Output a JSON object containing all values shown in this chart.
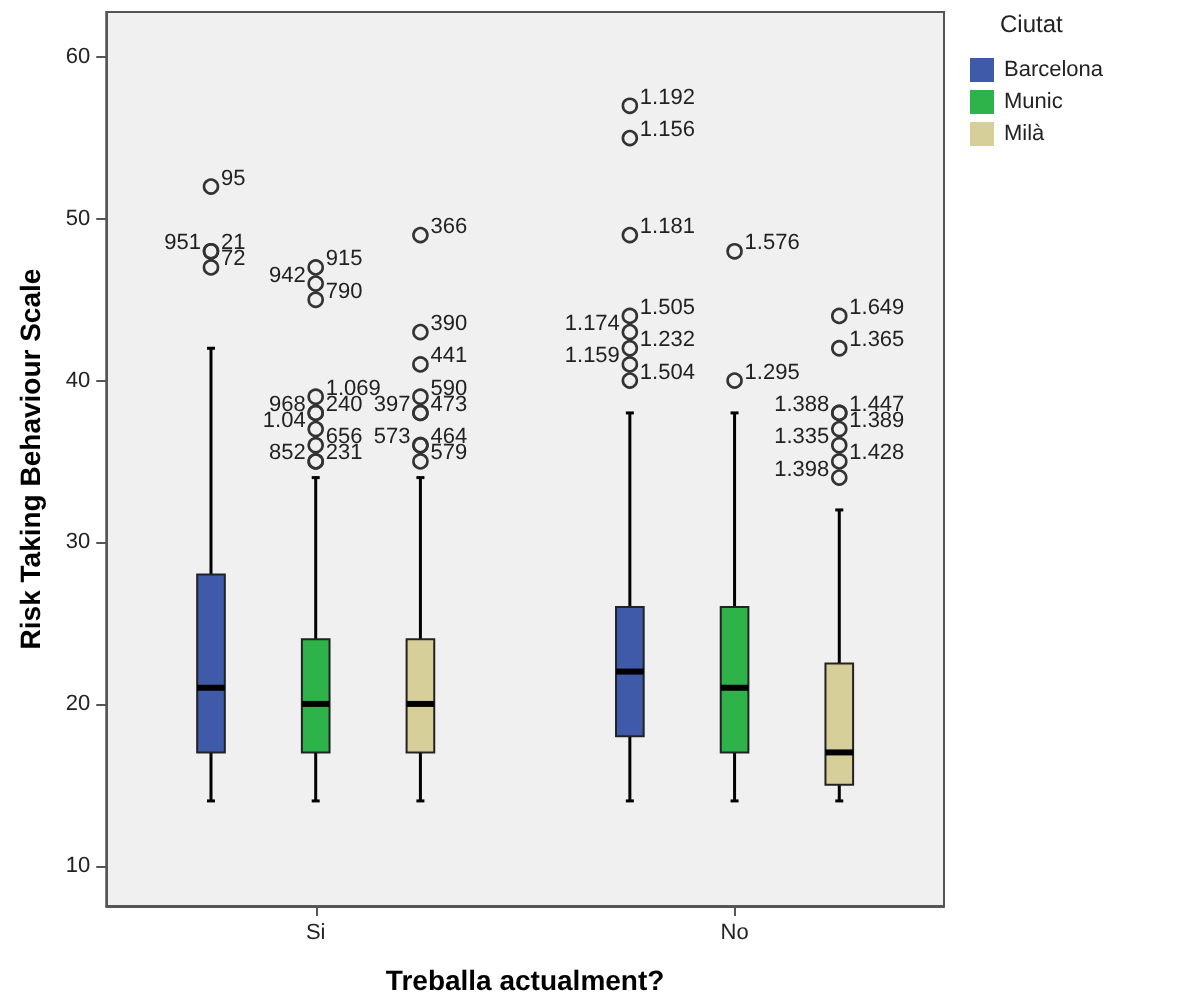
{
  "chart_data": {
    "type": "box",
    "xlabel": "Treballa actualment?",
    "ylabel": "Risk Taking Behaviour Scale",
    "legend_title": "Ciutat",
    "categories": [
      "Si",
      "No"
    ],
    "ylim": [
      7.5,
      62.8
    ],
    "yticks": [
      10,
      20,
      30,
      40,
      50,
      60
    ],
    "grid": false,
    "legend": "right",
    "series": [
      {
        "name": "Barcelona",
        "color": "#3e5aa8",
        "boxes": [
          {
            "low": 14,
            "q1": 17,
            "median": 21,
            "q3": 28,
            "high": 42,
            "outliers": [
              52,
              48,
              48,
              47
            ]
          },
          {
            "low": 14,
            "q1": 18,
            "median": 22,
            "q3": 26,
            "high": 38,
            "outliers": [
              57,
              55,
              49,
              44,
              43,
              42,
              41,
              40
            ]
          }
        ]
      },
      {
        "name": "Munic",
        "color": "#2eb34a",
        "boxes": [
          {
            "low": 14,
            "q1": 17,
            "median": 20,
            "q3": 24,
            "high": 34,
            "outliers": [
              47,
              46,
              45,
              39,
              38,
              38,
              37,
              36,
              35,
              35
            ]
          },
          {
            "low": 14,
            "q1": 17,
            "median": 21,
            "q3": 26,
            "high": 38,
            "outliers": [
              48,
              40
            ]
          }
        ]
      },
      {
        "name": "Milà",
        "color": "#d6cf9a",
        "boxes": [
          {
            "low": 14,
            "q1": 17,
            "median": 20,
            "q3": 24,
            "high": 34,
            "outliers": [
              49,
              43,
              41,
              39,
              38,
              38,
              36,
              36,
              35
            ]
          },
          {
            "low": 14,
            "q1": 15,
            "median": 17,
            "q3": 22.5,
            "high": 32,
            "outliers": [
              44,
              42,
              38,
              38,
              37,
              36,
              35,
              34
            ]
          }
        ]
      }
    ],
    "annotations": [
      "95",
      "21",
      "951",
      "72",
      "1.192",
      "1.156",
      "1.181",
      "1.505",
      "1.174",
      "1.232",
      "1.159",
      "1.504",
      "915",
      "942",
      "790",
      "1.069",
      "968",
      "240",
      "1.04",
      "656",
      "852",
      "231",
      "1.576",
      "1.295",
      "366",
      "390",
      "441",
      "590",
      "397",
      "473",
      "464",
      "573",
      "579",
      "1.649",
      "1.365",
      "1.447",
      "1.388",
      "1.389",
      "1.335",
      "1.428",
      "1.398"
    ]
  }
}
